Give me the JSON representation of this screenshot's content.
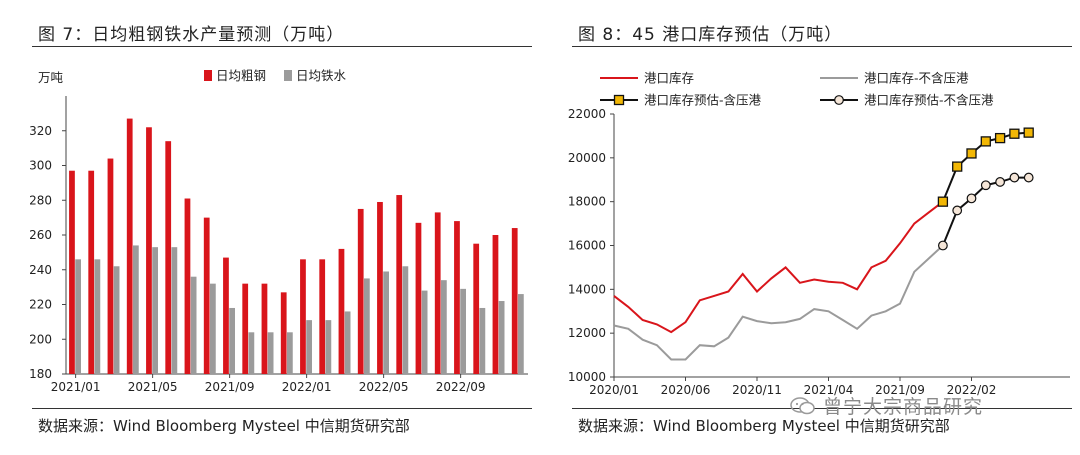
{
  "left": {
    "title": "图 7：日均粗钢铁水产量预测（万吨）",
    "source": "数据来源：Wind Bloomberg Mysteel 中信期货研究部"
  },
  "right": {
    "title": "图 8：45 港口库存预估（万吨）",
    "source": "数据来源：Wind Bloomberg Mysteel 中信期货研究部"
  },
  "watermark": "曾宁大宗商品研究",
  "colors": {
    "red": "#d9151b",
    "gray": "#9b9b9b",
    "gold": "#f2b705",
    "black": "#111111"
  },
  "chart_data": [
    {
      "type": "bar",
      "unit_label": "万吨",
      "categories": [
        "2021/01",
        "2021/02",
        "2021/03",
        "2021/04",
        "2021/05",
        "2021/06",
        "2021/07",
        "2021/08",
        "2021/09",
        "2021/10",
        "2021/11",
        "2021/12",
        "2022/01",
        "2022/02",
        "2022/03",
        "2022/04",
        "2022/05",
        "2022/06",
        "2022/07",
        "2022/08",
        "2022/09",
        "2022/10",
        "2022/11",
        "2022/12"
      ],
      "tick_labels": [
        "2021/01",
        "2021/05",
        "2021/09",
        "2022/01",
        "2022/05",
        "2022/09"
      ],
      "series": [
        {
          "name": "日均粗钢",
          "color": "#d9151b",
          "values": [
            297,
            297,
            304,
            327,
            322,
            314,
            281,
            270,
            247,
            232,
            232,
            227,
            246,
            246,
            252,
            275,
            279,
            283,
            267,
            273,
            268,
            255,
            260,
            264
          ]
        },
        {
          "name": "日均铁水",
          "color": "#9b9b9b",
          "values": [
            246,
            246,
            242,
            254,
            253,
            253,
            236,
            232,
            218,
            204,
            204,
            204,
            211,
            211,
            216,
            235,
            239,
            242,
            228,
            234,
            229,
            218,
            222,
            226
          ]
        }
      ],
      "ylim": [
        180,
        340
      ],
      "yticks": [
        180,
        200,
        220,
        240,
        260,
        280,
        300,
        320
      ],
      "legend": "top-center"
    },
    {
      "type": "line",
      "x_tick_labels": [
        "2020/01",
        "2020/06",
        "2020/11",
        "2021/04",
        "2021/09",
        "2022/02"
      ],
      "ylim": [
        10000,
        22000
      ],
      "yticks": [
        10000,
        12000,
        14000,
        16000,
        18000,
        20000,
        22000
      ],
      "legend": "top",
      "series": [
        {
          "name": "港口库存",
          "color": "#d9151b",
          "marker": "none",
          "points": [
            [
              "2020/01",
              13700
            ],
            [
              "2020/02",
              13200
            ],
            [
              "2020/03",
              12600
            ],
            [
              "2020/04",
              12400
            ],
            [
              "2020/05",
              12050
            ],
            [
              "2020/06",
              12500
            ],
            [
              "2020/07",
              13500
            ],
            [
              "2020/08",
              13700
            ],
            [
              "2020/09",
              13900
            ],
            [
              "2020/10",
              14700
            ],
            [
              "2020/11",
              13900
            ],
            [
              "2020/12",
              14500
            ],
            [
              "2021/01",
              15000
            ],
            [
              "2021/02",
              14300
            ],
            [
              "2021/03",
              14450
            ],
            [
              "2021/04",
              14350
            ],
            [
              "2021/05",
              14300
            ],
            [
              "2021/06",
              14000
            ],
            [
              "2021/07",
              15000
            ],
            [
              "2021/08",
              15300
            ],
            [
              "2021/09",
              16100
            ],
            [
              "2021/10",
              17000
            ],
            [
              "2021/11",
              17500
            ],
            [
              "2021/12",
              18000
            ]
          ]
        },
        {
          "name": "港口库存-不含压港",
          "color": "#9b9b9b",
          "marker": "none",
          "points": [
            [
              "2020/01",
              12350
            ],
            [
              "2020/02",
              12200
            ],
            [
              "2020/03",
              11700
            ],
            [
              "2020/04",
              11450
            ],
            [
              "2020/05",
              10800
            ],
            [
              "2020/06",
              10800
            ],
            [
              "2020/07",
              11450
            ],
            [
              "2020/08",
              11400
            ],
            [
              "2020/09",
              11800
            ],
            [
              "2020/10",
              12750
            ],
            [
              "2020/11",
              12550
            ],
            [
              "2020/12",
              12450
            ],
            [
              "2021/01",
              12500
            ],
            [
              "2021/02",
              12650
            ],
            [
              "2021/03",
              13100
            ],
            [
              "2021/04",
              13000
            ],
            [
              "2021/05",
              12600
            ],
            [
              "2021/06",
              12200
            ],
            [
              "2021/07",
              12800
            ],
            [
              "2021/08",
              13000
            ],
            [
              "2021/09",
              13350
            ],
            [
              "2021/10",
              14800
            ],
            [
              "2021/11",
              15400
            ],
            [
              "2021/12",
              16000
            ]
          ]
        },
        {
          "name": "港口库存预估-含压港",
          "color": "#111111",
          "marker": "square",
          "marker_fill": "#f2b705",
          "points": [
            [
              "2021/12",
              18000
            ],
            [
              "2022/01",
              19600
            ],
            [
              "2022/02",
              20200
            ],
            [
              "2022/03",
              20750
            ],
            [
              "2022/04",
              20900
            ],
            [
              "2022/05",
              21100
            ],
            [
              "2022/06",
              21150
            ]
          ]
        },
        {
          "name": "港口库存预估-不含压港",
          "color": "#111111",
          "marker": "circle",
          "marker_fill": "#f5e6d8",
          "points": [
            [
              "2021/12",
              16000
            ],
            [
              "2022/01",
              17600
            ],
            [
              "2022/02",
              18150
            ],
            [
              "2022/03",
              18750
            ],
            [
              "2022/04",
              18900
            ],
            [
              "2022/05",
              19100
            ],
            [
              "2022/06",
              19100
            ]
          ]
        }
      ]
    }
  ]
}
